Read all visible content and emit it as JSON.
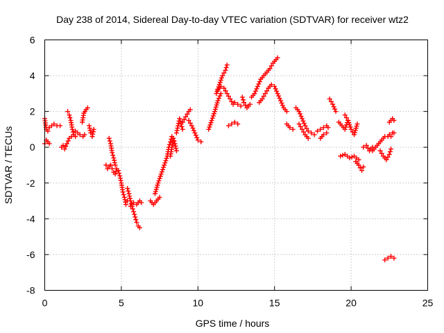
{
  "chart_data": {
    "type": "scatter",
    "title": "Day 238 of 2014, Sidereal Day-to-day VTEC variation (SDTVAR) for receiver wtz2",
    "xlabel": "GPS time / hours",
    "ylabel": "SDTVAR / TECUs",
    "xlim": [
      0,
      25
    ],
    "ylim": [
      -8,
      6
    ],
    "x_ticks": [
      "0",
      "5",
      "10",
      "15",
      "20",
      "25"
    ],
    "y_ticks": [
      "-8",
      "-6",
      "-4",
      "-2",
      "0",
      "2",
      "4",
      "6"
    ],
    "grid": true,
    "marker": "plus",
    "color": "#ff0000",
    "series": [
      {
        "name": "s01",
        "x": [
          0.0,
          0.1,
          0.2,
          0.3,
          0.45,
          0.6,
          0.8,
          1.0
        ],
        "y": [
          1.6,
          1.0,
          0.9,
          1.1,
          1.2,
          1.3,
          1.2,
          1.2
        ]
      },
      {
        "name": "s02",
        "x": [
          0.0,
          0.1,
          0.2,
          0.3
        ],
        "y": [
          0.2,
          0.4,
          0.3,
          0.2
        ]
      },
      {
        "name": "s03",
        "x": [
          1.1,
          1.2,
          1.3,
          1.45,
          1.6,
          1.75,
          1.9,
          2.0
        ],
        "y": [
          0.0,
          0.1,
          -0.1,
          0.2,
          0.5,
          0.6,
          0.7,
          0.6
        ]
      },
      {
        "name": "s04",
        "x": [
          1.5,
          1.6,
          1.7,
          1.8,
          1.9
        ],
        "y": [
          2.0,
          1.8,
          1.5,
          1.0,
          0.7
        ]
      },
      {
        "name": "s05",
        "x": [
          2.0,
          2.15,
          2.3,
          2.5,
          2.6
        ],
        "y": [
          0.9,
          0.8,
          0.7,
          0.6,
          0.7
        ]
      },
      {
        "name": "s06",
        "x": [
          2.45,
          2.55,
          2.7,
          2.8
        ],
        "y": [
          1.4,
          1.9,
          2.1,
          2.2
        ]
      },
      {
        "name": "s07",
        "x": [
          2.9,
          3.0,
          3.1,
          3.2
        ],
        "y": [
          1.2,
          0.8,
          0.6,
          1.0
        ]
      },
      {
        "name": "s08",
        "x": [
          4.0,
          4.1,
          4.2,
          4.3
        ],
        "y": [
          -1.0,
          -1.2,
          -1.1,
          -1.0
        ]
      },
      {
        "name": "s09",
        "x": [
          4.3,
          4.4,
          4.5,
          4.6,
          4.7,
          4.8,
          4.9,
          5.0,
          5.1,
          5.2,
          5.3,
          5.4
        ],
        "y": [
          -1.0,
          -1.2,
          -1.4,
          -1.5,
          -1.2,
          -1.3,
          -1.6,
          -2.0,
          -2.5,
          -2.8,
          -3.2,
          -3.0
        ]
      },
      {
        "name": "s10",
        "x": [
          4.2,
          4.3,
          4.4,
          4.5,
          4.6
        ],
        "y": [
          0.5,
          0.2,
          -0.3,
          -0.6,
          -1.0
        ]
      },
      {
        "name": "s11",
        "x": [
          5.4,
          5.5,
          5.6,
          5.7,
          5.8,
          5.9,
          6.0,
          6.1,
          6.2
        ],
        "y": [
          -2.3,
          -2.6,
          -3.0,
          -3.3,
          -3.6,
          -3.9,
          -4.2,
          -4.4,
          -4.5
        ]
      },
      {
        "name": "s12",
        "x": [
          5.6,
          5.8,
          6.0,
          6.2,
          6.3
        ],
        "y": [
          -3.3,
          -3.1,
          -3.2,
          -3.0,
          -3.1
        ]
      },
      {
        "name": "s13",
        "x": [
          6.9,
          7.1,
          7.3,
          7.5
        ],
        "y": [
          -3.0,
          -3.2,
          -3.0,
          -2.8
        ]
      },
      {
        "name": "s14",
        "x": [
          7.2,
          7.4,
          7.6,
          7.8,
          8.0,
          8.1,
          8.2,
          8.3
        ],
        "y": [
          -2.6,
          -2.0,
          -1.5,
          -1.0,
          -0.5,
          0.0,
          0.3,
          0.6
        ]
      },
      {
        "name": "s15",
        "x": [
          8.2,
          8.3,
          8.4,
          8.5,
          8.6
        ],
        "y": [
          -0.5,
          0.0,
          0.5,
          0.2,
          -0.2
        ]
      },
      {
        "name": "s16",
        "x": [
          8.6,
          8.7,
          8.8,
          8.9,
          9.0
        ],
        "y": [
          0.8,
          1.2,
          1.6,
          1.3,
          1.0
        ]
      },
      {
        "name": "s17",
        "x": [
          9.0,
          9.2,
          9.4,
          9.5
        ],
        "y": [
          1.4,
          1.7,
          2.0,
          2.1
        ]
      },
      {
        "name": "s18",
        "x": [
          9.4,
          9.6,
          9.8,
          10.0,
          10.2
        ],
        "y": [
          1.5,
          1.2,
          0.8,
          0.4,
          0.3
        ]
      },
      {
        "name": "s19",
        "x": [
          10.7,
          10.9,
          11.1,
          11.3,
          11.5
        ],
        "y": [
          1.0,
          1.5,
          2.0,
          2.6,
          3.0
        ]
      },
      {
        "name": "s20",
        "x": [
          11.2,
          11.4,
          11.6,
          11.8,
          11.9
        ],
        "y": [
          3.0,
          3.5,
          4.0,
          4.3,
          4.6
        ]
      },
      {
        "name": "s21",
        "x": [
          11.3,
          11.5,
          11.7,
          11.9,
          12.1,
          12.3
        ],
        "y": [
          3.2,
          3.4,
          3.3,
          3.0,
          2.7,
          2.4
        ]
      },
      {
        "name": "s22",
        "x": [
          12.0,
          12.2,
          12.4,
          12.6
        ],
        "y": [
          1.2,
          1.3,
          1.4,
          1.3
        ]
      },
      {
        "name": "s23",
        "x": [
          12.4,
          12.6,
          12.8
        ],
        "y": [
          2.5,
          2.4,
          2.3
        ]
      },
      {
        "name": "s24",
        "x": [
          12.9,
          13.0,
          13.2,
          13.4
        ],
        "y": [
          2.8,
          2.5,
          2.2,
          2.4
        ]
      },
      {
        "name": "s25",
        "x": [
          13.5,
          13.7,
          13.9,
          14.1,
          14.3,
          14.5,
          14.7,
          14.9,
          15.1,
          15.2
        ],
        "y": [
          2.8,
          3.0,
          3.4,
          3.8,
          4.0,
          4.2,
          4.4,
          4.7,
          4.9,
          5.0
        ]
      },
      {
        "name": "s26",
        "x": [
          14.0,
          14.2,
          14.4,
          14.6,
          14.8,
          15.0,
          15.2,
          15.4,
          15.6,
          15.8
        ],
        "y": [
          2.5,
          2.7,
          3.0,
          3.3,
          3.5,
          3.4,
          3.0,
          2.6,
          2.2,
          2.0
        ]
      },
      {
        "name": "s27",
        "x": [
          15.8,
          16.0,
          16.2
        ],
        "y": [
          1.3,
          1.1,
          1.0
        ]
      },
      {
        "name": "s28",
        "x": [
          16.4,
          16.6,
          16.8,
          17.0,
          17.2,
          17.4,
          17.6
        ],
        "y": [
          2.2,
          2.0,
          1.6,
          1.2,
          0.9,
          0.8,
          0.7
        ]
      },
      {
        "name": "s29",
        "x": [
          16.6,
          16.8,
          17.0,
          17.2
        ],
        "y": [
          1.3,
          1.0,
          0.7,
          0.5
        ]
      },
      {
        "name": "s30",
        "x": [
          17.8,
          18.0,
          18.2,
          18.4,
          18.5
        ],
        "y": [
          0.9,
          1.0,
          1.1,
          1.2,
          1.1
        ]
      },
      {
        "name": "s31",
        "x": [
          18.0,
          18.2,
          18.4
        ],
        "y": [
          0.5,
          0.7,
          0.8
        ]
      },
      {
        "name": "s32",
        "x": [
          18.6,
          18.8,
          19.0
        ],
        "y": [
          2.7,
          2.4,
          2.0
        ]
      },
      {
        "name": "s33",
        "x": [
          19.2,
          19.4,
          19.6,
          19.8
        ],
        "y": [
          1.4,
          1.2,
          1.0,
          1.5
        ]
      },
      {
        "name": "s34",
        "x": [
          19.6,
          19.8,
          20.0,
          20.2,
          20.4
        ],
        "y": [
          1.8,
          1.5,
          1.0,
          0.7,
          1.3
        ]
      },
      {
        "name": "s35",
        "x": [
          19.3,
          19.6,
          19.9,
          20.2,
          20.5
        ],
        "y": [
          -0.5,
          -0.4,
          -0.6,
          -0.5,
          -0.7
        ]
      },
      {
        "name": "s36",
        "x": [
          20.3,
          20.5,
          20.7,
          20.8
        ],
        "y": [
          -0.8,
          -1.0,
          -1.3,
          -1.1
        ]
      },
      {
        "name": "s37",
        "x": [
          20.8,
          21.0,
          21.2,
          21.4
        ],
        "y": [
          0.0,
          0.1,
          -0.2,
          0.0
        ]
      },
      {
        "name": "s38",
        "x": [
          21.4,
          21.6,
          21.8,
          22.0,
          22.2
        ],
        "y": [
          -0.2,
          0.0,
          0.2,
          0.4,
          0.6
        ]
      },
      {
        "name": "s39",
        "x": [
          21.9,
          22.1,
          22.3,
          22.5,
          22.6
        ],
        "y": [
          -0.2,
          -0.5,
          -0.7,
          -0.4,
          -0.1
        ]
      },
      {
        "name": "s40",
        "x": [
          22.4,
          22.5,
          22.6
        ],
        "y": [
          0.6,
          0.7,
          0.6
        ]
      },
      {
        "name": "s41",
        "x": [
          22.5,
          22.6,
          22.7,
          22.8
        ],
        "y": [
          1.4,
          1.5,
          1.6,
          1.5
        ]
      },
      {
        "name": "s42",
        "x": [
          22.7,
          22.8
        ],
        "y": [
          0.8,
          0.8
        ]
      },
      {
        "name": "s43",
        "x": [
          22.2,
          22.4,
          22.6,
          22.8
        ],
        "y": [
          -6.3,
          -6.2,
          -6.1,
          -6.2
        ]
      }
    ]
  }
}
